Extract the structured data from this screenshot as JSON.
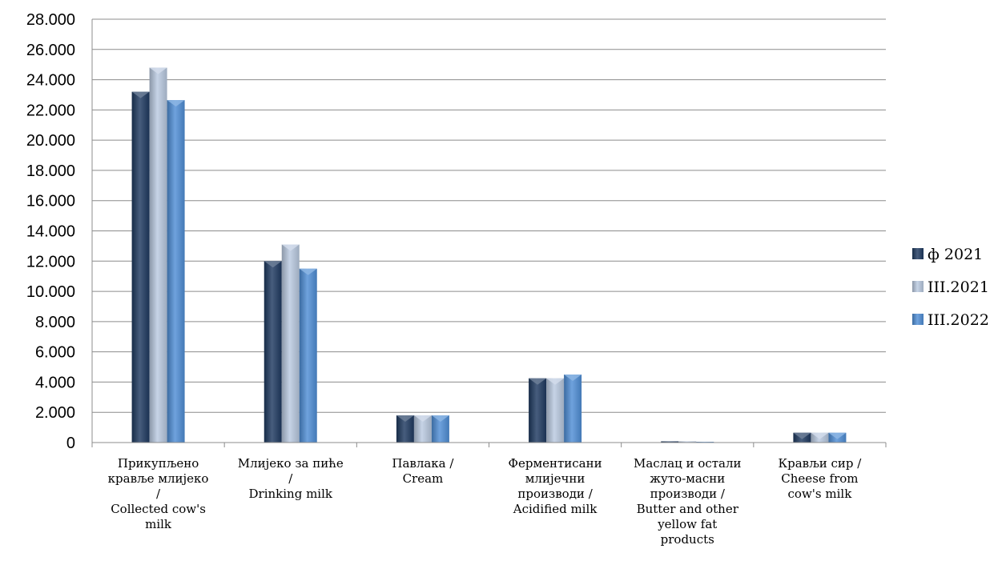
{
  "chart_data": {
    "type": "bar",
    "title": "",
    "xlabel": "",
    "ylabel": "",
    "ylim": [
      0,
      28000
    ],
    "yticks": [
      0,
      2000,
      4000,
      6000,
      8000,
      10000,
      12000,
      14000,
      16000,
      18000,
      20000,
      22000,
      24000,
      26000,
      28000
    ],
    "ytick_labels": [
      "0",
      "2.000",
      "4.000",
      "6.000",
      "8.000",
      "10.000",
      "12.000",
      "14.000",
      "16.000",
      "18.000",
      "20.000",
      "22.000",
      "24.000",
      "26.000",
      "28.000"
    ],
    "grid": true,
    "legend_position": "right",
    "categories": [
      [
        "Прикупљено",
        "крављe млијеко",
        "/",
        "Collected cow's",
        "milk"
      ],
      [
        "Млијеко за пиће",
        "/",
        "Drinking milk"
      ],
      [
        "Павлака /",
        "Cream"
      ],
      [
        "Ферментисани",
        "млијечни",
        "производи /",
        "Acidified milk"
      ],
      [
        "Маслац и остали",
        "жуто-масни",
        "производи /",
        "Butter and other",
        "yellow fat",
        "products"
      ],
      [
        "Крављи сир /",
        "Cheese from",
        "cow's milk"
      ]
    ],
    "series": [
      {
        "name": "ф 2021",
        "color": "#1f3a60",
        "values": [
          23200,
          12000,
          1800,
          4250,
          80,
          650
        ]
      },
      {
        "name": "III.2021",
        "color": "#b9c9e0",
        "values": [
          24800,
          13100,
          1800,
          4250,
          80,
          650
        ]
      },
      {
        "name": "III.2022",
        "color": "#4f8ed6",
        "values": [
          22650,
          11500,
          1800,
          4500,
          50,
          650
        ]
      }
    ]
  }
}
